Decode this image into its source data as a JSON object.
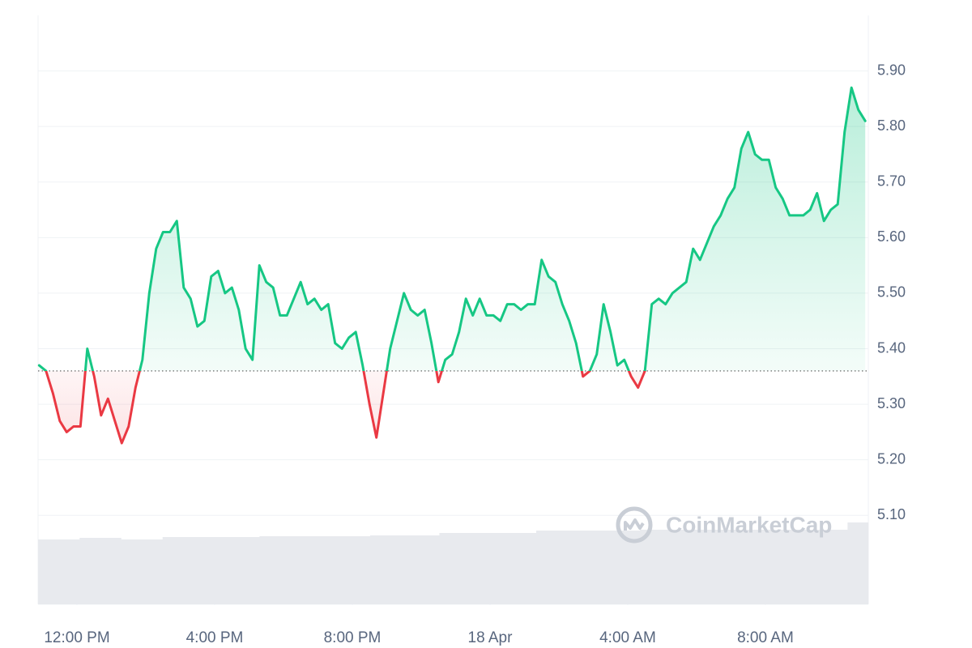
{
  "chart_data": {
    "type": "line",
    "x": [
      10.9,
      11.1,
      11.3,
      11.5,
      11.7,
      11.9,
      12.1,
      12.3,
      12.5,
      12.7,
      12.9,
      13.1,
      13.3,
      13.5,
      13.7,
      13.9,
      14.1,
      14.3,
      14.5,
      14.7,
      14.9,
      15.1,
      15.3,
      15.5,
      15.7,
      15.9,
      16.1,
      16.3,
      16.5,
      16.7,
      16.9,
      17.1,
      17.3,
      17.5,
      17.7,
      17.9,
      18.1,
      18.3,
      18.5,
      18.7,
      18.9,
      19.1,
      19.3,
      19.5,
      19.7,
      19.9,
      20.1,
      20.3,
      20.5,
      20.7,
      20.9,
      21.1,
      21.3,
      21.5,
      21.7,
      21.9,
      22.1,
      22.3,
      22.5,
      22.7,
      22.9,
      23.1,
      23.3,
      23.5,
      23.7,
      23.9,
      24.1,
      24.3,
      24.5,
      24.7,
      24.9,
      25.1,
      25.3,
      25.5,
      25.7,
      25.9,
      26.1,
      26.3,
      26.5,
      26.7,
      26.9,
      27.1,
      27.3,
      27.5,
      27.7,
      27.9,
      28.1,
      28.3,
      28.5,
      28.7,
      28.9,
      29.1,
      29.3,
      29.5,
      29.7,
      29.9,
      30.1,
      30.3,
      30.5,
      30.7,
      30.9,
      31.1,
      31.3,
      31.5,
      31.7,
      31.9,
      32.1,
      32.3,
      32.5,
      32.7,
      32.9,
      33.1,
      33.3,
      33.5,
      33.7,
      33.9,
      34.1,
      34.3,
      34.5,
      34.7,
      34.9
    ],
    "xlim": [
      10.87,
      34.99
    ],
    "xticks": [
      {
        "value": 12,
        "label": "12:00 PM"
      },
      {
        "value": 16,
        "label": "4:00 PM"
      },
      {
        "value": 20,
        "label": "8:00 PM"
      },
      {
        "value": 24,
        "label": "18 Apr"
      },
      {
        "value": 28,
        "label": "4:00 AM"
      },
      {
        "value": 32,
        "label": "8:00 AM"
      }
    ],
    "ylim": [
      4.94,
      6.0
    ],
    "yticks": [
      {
        "value": 5.1,
        "label": "5.10"
      },
      {
        "value": 5.2,
        "label": "5.20"
      },
      {
        "value": 5.3,
        "label": "5.30"
      },
      {
        "value": 5.4,
        "label": "5.40"
      },
      {
        "value": 5.5,
        "label": "5.50"
      },
      {
        "value": 5.6,
        "label": "5.60"
      },
      {
        "value": 5.7,
        "label": "5.70"
      },
      {
        "value": 5.8,
        "label": "5.80"
      },
      {
        "value": 5.9,
        "label": "5.90"
      }
    ],
    "grid": true,
    "baseline": 5.36,
    "series": [
      {
        "color": "#16c784",
        "down_color": "#ea3943",
        "values": [
          5.37,
          5.36,
          5.32,
          5.27,
          5.25,
          5.26,
          5.26,
          5.4,
          5.35,
          5.28,
          5.31,
          5.27,
          5.23,
          5.26,
          5.33,
          5.38,
          5.5,
          5.58,
          5.61,
          5.61,
          5.63,
          5.51,
          5.49,
          5.44,
          5.45,
          5.53,
          5.54,
          5.5,
          5.51,
          5.47,
          5.4,
          5.38,
          5.55,
          5.52,
          5.51,
          5.46,
          5.46,
          5.49,
          5.52,
          5.48,
          5.49,
          5.47,
          5.48,
          5.41,
          5.4,
          5.42,
          5.43,
          5.37,
          5.3,
          5.24,
          5.32,
          5.4,
          5.45,
          5.5,
          5.47,
          5.46,
          5.47,
          5.41,
          5.34,
          5.38,
          5.39,
          5.43,
          5.49,
          5.46,
          5.49,
          5.46,
          5.46,
          5.45,
          5.48,
          5.48,
          5.47,
          5.48,
          5.48,
          5.56,
          5.53,
          5.52,
          5.48,
          5.45,
          5.41,
          5.35,
          5.36,
          5.39,
          5.48,
          5.43,
          5.37,
          5.38,
          5.35,
          5.33,
          5.36,
          5.48,
          5.49,
          5.48,
          5.5,
          5.51,
          5.52,
          5.58,
          5.56,
          5.59,
          5.62,
          5.64,
          5.67,
          5.69,
          5.76,
          5.79,
          5.75,
          5.74,
          5.74,
          5.69,
          5.67,
          5.64,
          5.64,
          5.64,
          5.65,
          5.68,
          5.63,
          5.65,
          5.66,
          5.79,
          5.87,
          5.83,
          5.81
        ]
      }
    ],
    "volume": {
      "color": "#e8eaee",
      "values": [
        80,
        80,
        80,
        80,
        80,
        80,
        82,
        82,
        82,
        82,
        82,
        82,
        80,
        80,
        80,
        80,
        80,
        80,
        83,
        83,
        83,
        83,
        83,
        83,
        83,
        83,
        83,
        83,
        83,
        83,
        83,
        83,
        84,
        84,
        84,
        84,
        84,
        84,
        84,
        84,
        84,
        84,
        84,
        84,
        84,
        84,
        84,
        84,
        85,
        85,
        85,
        85,
        85,
        85,
        85,
        85,
        85,
        85,
        88,
        88,
        88,
        88,
        88,
        88,
        88,
        88,
        88,
        88,
        88,
        88,
        88,
        88,
        91,
        91,
        91,
        91,
        91,
        91,
        91,
        91,
        91,
        91,
        91,
        91,
        91,
        91,
        91,
        92,
        92,
        92,
        92,
        92,
        92,
        92,
        92,
        92,
        92,
        92,
        92,
        92,
        92,
        92,
        92,
        92,
        92,
        92,
        92,
        92,
        92,
        92,
        92,
        92,
        92,
        92,
        92,
        92,
        92,
        101,
        101,
        101
      ]
    },
    "watermark": "CoinMarketCap"
  }
}
